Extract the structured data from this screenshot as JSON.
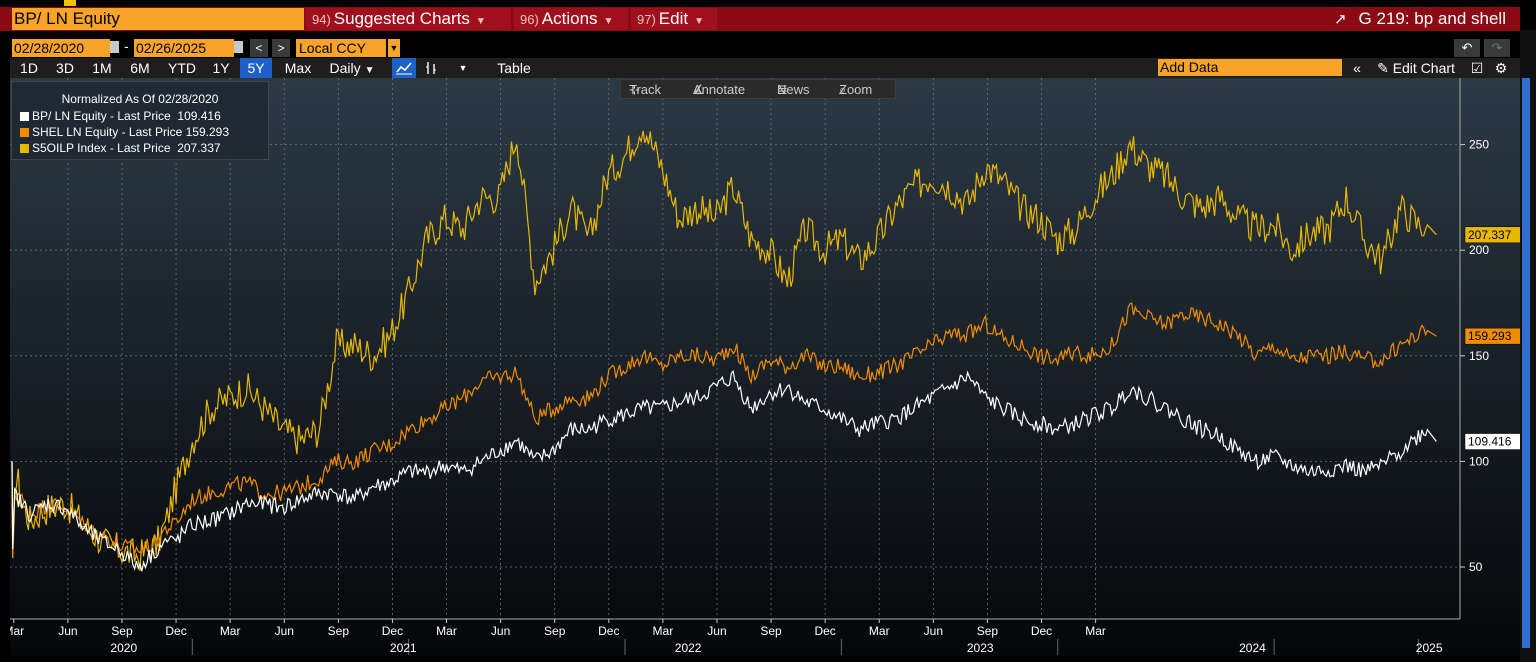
{
  "header": {
    "security": "BP/ LN Equity",
    "menus": [
      {
        "num": "94)",
        "label": "Suggested Charts"
      },
      {
        "num": "96)",
        "label": "Actions"
      },
      {
        "num": "97)",
        "label": "Edit"
      }
    ],
    "title": "G 219: bp and shell"
  },
  "dates": {
    "start": "02/28/2020",
    "end": "02/26/2025",
    "currency": "Local CCY"
  },
  "toolbar": {
    "periods": [
      "1D",
      "3D",
      "1M",
      "6M",
      "YTD",
      "1Y",
      "5Y",
      "Max"
    ],
    "active_period": "5Y",
    "frequency": "Daily",
    "table_label": "Table",
    "add_data_placeholder": "Add Data",
    "edit_chart": "Edit Chart"
  },
  "chart_tools": [
    "Track",
    "Annotate",
    "News",
    "Zoom"
  ],
  "legend": {
    "title": "Normalized As Of 02/28/2020",
    "items": [
      {
        "label": "BP/ LN Equity - Last Price",
        "value": "109.416",
        "color": "#ffffff"
      },
      {
        "label": "SHEL LN Equity - Last Price",
        "value": "159.293",
        "color": "#f08c00"
      },
      {
        "label": "S5OILP Index - Last Price",
        "value": "207.337",
        "color": "#e8b800"
      }
    ]
  },
  "chart_data": {
    "type": "line",
    "ylim": [
      0,
      280
    ],
    "yticks": [
      50,
      100,
      150,
      200,
      250
    ],
    "x_range": [
      "2020-02-28",
      "2025-02-26"
    ],
    "month_ticks": [
      "Mar",
      "Jun",
      "Sep",
      "Dec",
      "Mar",
      "Jun",
      "Sep",
      "Dec",
      "Mar",
      "Jun",
      "Sep",
      "Dec",
      "Mar",
      "Jun",
      "Sep",
      "Dec",
      "Mar",
      "Jun",
      "Sep",
      "Dec",
      "Mar"
    ],
    "year_labels": [
      "2020",
      "2021",
      "2022",
      "2023",
      "2024",
      "2025"
    ],
    "series": [
      {
        "name": "S5OILP Index - Last Price",
        "color": "#e8b800",
        "last_label": "207.337",
        "points": [
          [
            0,
            100
          ],
          [
            0.04,
            48
          ],
          [
            0.15,
            90
          ],
          [
            0.35,
            90
          ],
          [
            0.55,
            80
          ],
          [
            1,
            72
          ],
          [
            2,
            78
          ],
          [
            3,
            80
          ],
          [
            4,
            70
          ],
          [
            5,
            62
          ],
          [
            6,
            58
          ],
          [
            7,
            55
          ],
          [
            8,
            60
          ],
          [
            8.5,
            70
          ],
          [
            9,
            85
          ],
          [
            10,
            110
          ],
          [
            11,
            125
          ],
          [
            12,
            130
          ],
          [
            13,
            135
          ],
          [
            14,
            125
          ],
          [
            15,
            115
          ],
          [
            16,
            110
          ],
          [
            17,
            115
          ],
          [
            18,
            155
          ],
          [
            19,
            155
          ],
          [
            20,
            150
          ],
          [
            21,
            160
          ],
          [
            22,
            180
          ],
          [
            23,
            205
          ],
          [
            24,
            215
          ],
          [
            25,
            210
          ],
          [
            26,
            225
          ],
          [
            27,
            225
          ],
          [
            28,
            255
          ],
          [
            29,
            185
          ],
          [
            30,
            200
          ],
          [
            31,
            220
          ],
          [
            32,
            205
          ],
          [
            33,
            235
          ],
          [
            34,
            245
          ],
          [
            35,
            260
          ],
          [
            36,
            240
          ],
          [
            37,
            215
          ],
          [
            38,
            220
          ],
          [
            39,
            215
          ],
          [
            40,
            230
          ],
          [
            41,
            205
          ],
          [
            42,
            200
          ],
          [
            43,
            185
          ],
          [
            44,
            210
          ],
          [
            45,
            200
          ],
          [
            46,
            205
          ],
          [
            47,
            195
          ],
          [
            48,
            205
          ],
          [
            49,
            220
          ],
          [
            50,
            230
          ],
          [
            51,
            235
          ],
          [
            52,
            230
          ],
          [
            53,
            222
          ],
          [
            54,
            240
          ],
          [
            55,
            232
          ],
          [
            56,
            220
          ],
          [
            57,
            215
          ],
          [
            58,
            205
          ],
          [
            59,
            210
          ],
          [
            60,
            225
          ],
          [
            61,
            235
          ],
          [
            62,
            250
          ],
          [
            63,
            240
          ],
          [
            64,
            235
          ],
          [
            65,
            225
          ],
          [
            66,
            220
          ],
          [
            67,
            225
          ],
          [
            68,
            215
          ],
          [
            69,
            210
          ],
          [
            70,
            212
          ],
          [
            71,
            200
          ],
          [
            72,
            208
          ],
          [
            73,
            210
          ],
          [
            74,
            225
          ],
          [
            75,
            205
          ],
          [
            76,
            195
          ],
          [
            77,
            220
          ],
          [
            78,
            212
          ],
          [
            78.5,
            212
          ],
          [
            79,
            207.3
          ]
        ]
      },
      {
        "name": "SHEL LN Equity - Last Price",
        "color": "#f08c00",
        "last_label": "159.293",
        "points": [
          [
            0,
            100
          ],
          [
            0.04,
            52
          ],
          [
            0.15,
            85
          ],
          [
            0.35,
            85
          ],
          [
            0.55,
            82
          ],
          [
            1,
            75
          ],
          [
            2,
            80
          ],
          [
            3,
            78
          ],
          [
            4,
            70
          ],
          [
            5,
            65
          ],
          [
            6,
            60
          ],
          [
            7,
            58
          ],
          [
            8,
            62
          ],
          [
            8.5,
            68
          ],
          [
            9,
            70
          ],
          [
            10,
            82
          ],
          [
            11,
            85
          ],
          [
            12,
            88
          ],
          [
            13,
            90
          ],
          [
            14,
            85
          ],
          [
            15,
            85
          ],
          [
            16,
            88
          ],
          [
            17,
            92
          ],
          [
            18,
            100
          ],
          [
            19,
            100
          ],
          [
            20,
            105
          ],
          [
            21,
            108
          ],
          [
            22,
            115
          ],
          [
            23,
            120
          ],
          [
            24,
            125
          ],
          [
            25,
            130
          ],
          [
            26,
            138
          ],
          [
            27,
            140
          ],
          [
            28,
            142
          ],
          [
            29,
            120
          ],
          [
            30,
            125
          ],
          [
            31,
            130
          ],
          [
            32,
            130
          ],
          [
            33,
            140
          ],
          [
            34,
            145
          ],
          [
            35,
            150
          ],
          [
            36,
            145
          ],
          [
            37,
            150
          ],
          [
            38,
            150
          ],
          [
            39,
            148
          ],
          [
            40,
            155
          ],
          [
            41,
            140
          ],
          [
            42,
            148
          ],
          [
            43,
            145
          ],
          [
            44,
            150
          ],
          [
            45,
            145
          ],
          [
            46,
            145
          ],
          [
            47,
            140
          ],
          [
            48,
            142
          ],
          [
            49,
            145
          ],
          [
            50,
            150
          ],
          [
            51,
            155
          ],
          [
            52,
            160
          ],
          [
            53,
            160
          ],
          [
            54,
            165
          ],
          [
            55,
            158
          ],
          [
            56,
            155
          ],
          [
            57,
            150
          ],
          [
            58,
            148
          ],
          [
            59,
            152
          ],
          [
            60,
            150
          ],
          [
            61,
            155
          ],
          [
            62,
            172
          ],
          [
            63,
            168
          ],
          [
            64,
            165
          ],
          [
            65,
            170
          ],
          [
            66,
            168
          ],
          [
            67,
            165
          ],
          [
            68,
            160
          ],
          [
            69,
            150
          ],
          [
            70,
            155
          ],
          [
            71,
            148
          ],
          [
            72,
            150
          ],
          [
            73,
            150
          ],
          [
            74,
            152
          ],
          [
            75,
            148
          ],
          [
            76,
            148
          ],
          [
            77,
            155
          ],
          [
            78,
            160
          ],
          [
            78.5,
            162
          ],
          [
            79,
            159.3
          ]
        ]
      },
      {
        "name": "BP/ LN Equity - Last Price",
        "color": "#ffffff",
        "last_label": "109.416",
        "points": [
          [
            0,
            100
          ],
          [
            0.04,
            55
          ],
          [
            0.15,
            85
          ],
          [
            0.35,
            82
          ],
          [
            0.55,
            80
          ],
          [
            1,
            75
          ],
          [
            2,
            80
          ],
          [
            3,
            78
          ],
          [
            4,
            68
          ],
          [
            5,
            62
          ],
          [
            6,
            58
          ],
          [
            7,
            50
          ],
          [
            8,
            58
          ],
          [
            8.5,
            62
          ],
          [
            9,
            62
          ],
          [
            10,
            70
          ],
          [
            11,
            72
          ],
          [
            12,
            75
          ],
          [
            13,
            80
          ],
          [
            14,
            80
          ],
          [
            15,
            78
          ],
          [
            16,
            82
          ],
          [
            17,
            85
          ],
          [
            18,
            85
          ],
          [
            19,
            82
          ],
          [
            20,
            88
          ],
          [
            21,
            90
          ],
          [
            22,
            95
          ],
          [
            23,
            95
          ],
          [
            24,
            98
          ],
          [
            25,
            95
          ],
          [
            26,
            100
          ],
          [
            27,
            105
          ],
          [
            28,
            110
          ],
          [
            29,
            100
          ],
          [
            30,
            105
          ],
          [
            31,
            115
          ],
          [
            32,
            115
          ],
          [
            33,
            120
          ],
          [
            34,
            122
          ],
          [
            35,
            125
          ],
          [
            36,
            125
          ],
          [
            37,
            128
          ],
          [
            38,
            130
          ],
          [
            39,
            135
          ],
          [
            40,
            140
          ],
          [
            41,
            125
          ],
          [
            42,
            132
          ],
          [
            43,
            135
          ],
          [
            44,
            128
          ],
          [
            45,
            125
          ],
          [
            46,
            120
          ],
          [
            47,
            115
          ],
          [
            48,
            118
          ],
          [
            49,
            120
          ],
          [
            50,
            125
          ],
          [
            51,
            130
          ],
          [
            52,
            135
          ],
          [
            53,
            140
          ],
          [
            54,
            130
          ],
          [
            55,
            125
          ],
          [
            56,
            120
          ],
          [
            57,
            118
          ],
          [
            58,
            115
          ],
          [
            59,
            118
          ],
          [
            60,
            122
          ],
          [
            61,
            125
          ],
          [
            62,
            135
          ],
          [
            63,
            130
          ],
          [
            64,
            125
          ],
          [
            65,
            120
          ],
          [
            66,
            115
          ],
          [
            67,
            112
          ],
          [
            68,
            105
          ],
          [
            69,
            100
          ],
          [
            70,
            102
          ],
          [
            71,
            98
          ],
          [
            72,
            95
          ],
          [
            73,
            96
          ],
          [
            74,
            98
          ],
          [
            75,
            95
          ],
          [
            76,
            98
          ],
          [
            77,
            105
          ],
          [
            78,
            112
          ],
          [
            78.5,
            115
          ],
          [
            79,
            109.4
          ]
        ]
      }
    ]
  }
}
